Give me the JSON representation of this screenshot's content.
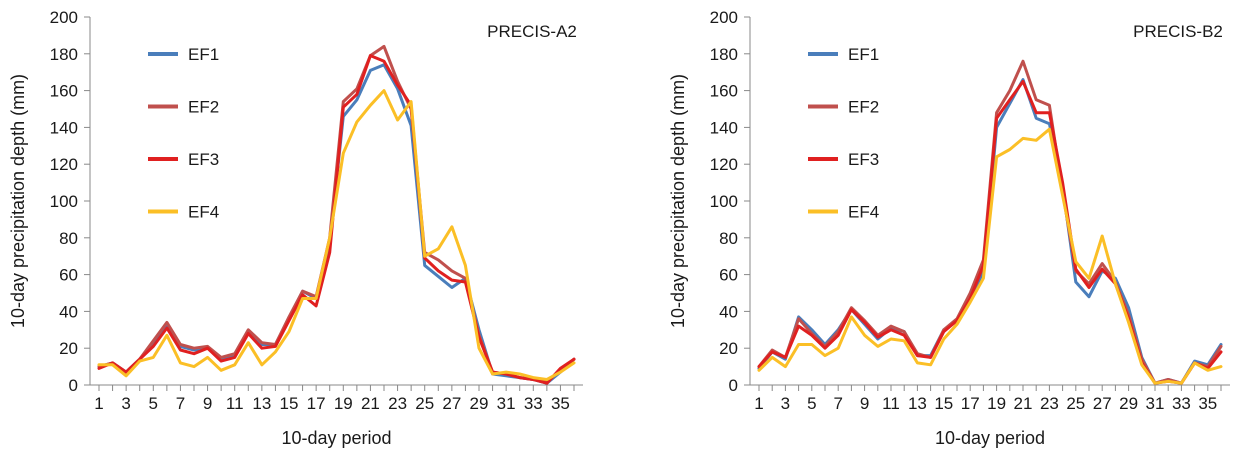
{
  "chart_data": [
    {
      "type": "line",
      "panel_label": "PRECIS-A2",
      "xlabel": "10-day period",
      "ylabel": "10-day precipitation depth (mm)",
      "ylim": [
        0,
        200
      ],
      "y_ticks": [
        0,
        20,
        40,
        60,
        80,
        100,
        120,
        140,
        160,
        180,
        200
      ],
      "x": [
        1,
        2,
        3,
        4,
        5,
        6,
        7,
        8,
        9,
        10,
        11,
        12,
        13,
        14,
        15,
        16,
        17,
        18,
        19,
        20,
        21,
        22,
        23,
        24,
        25,
        26,
        27,
        28,
        29,
        30,
        31,
        32,
        33,
        34,
        35,
        36
      ],
      "x_tick_labels": [
        "1",
        "3",
        "5",
        "7",
        "9",
        "11",
        "13",
        "15",
        "17",
        "19",
        "21",
        "23",
        "25",
        "27",
        "29",
        "31",
        "33",
        "35"
      ],
      "legend_position": "top-left",
      "grid": false,
      "series": [
        {
          "name": "EF1",
          "color": "#4a7ebb",
          "values": [
            10,
            12,
            7,
            14,
            22,
            33,
            21,
            19,
            20,
            14,
            16,
            29,
            22,
            22,
            36,
            51,
            47,
            77,
            146,
            155,
            171,
            174,
            161,
            141,
            65,
            59,
            53,
            58,
            30,
            6,
            5,
            4,
            3,
            1,
            7,
            14
          ]
        },
        {
          "name": "EF2",
          "color": "#c0504d",
          "values": [
            10,
            12,
            7,
            14,
            24,
            34,
            22,
            20,
            21,
            15,
            17,
            30,
            23,
            22,
            37,
            51,
            48,
            80,
            154,
            161,
            179,
            184,
            165,
            150,
            72,
            68,
            62,
            58,
            27,
            7,
            6,
            4,
            3,
            2,
            8,
            14
          ]
        },
        {
          "name": "EF3",
          "color": "#e02020",
          "values": [
            9,
            12,
            7,
            14,
            21,
            31,
            19,
            17,
            20,
            13,
            15,
            28,
            20,
            21,
            35,
            49,
            43,
            72,
            151,
            158,
            179,
            176,
            163,
            152,
            69,
            62,
            57,
            56,
            26,
            7,
            6,
            4,
            3,
            1,
            9,
            14
          ]
        },
        {
          "name": "EF4",
          "color": "#fbbf26",
          "values": [
            11,
            11,
            5,
            13,
            15,
            27,
            12,
            10,
            15,
            8,
            11,
            23,
            11,
            18,
            29,
            47,
            47,
            80,
            126,
            143,
            152,
            160,
            144,
            154,
            70,
            74,
            86,
            65,
            20,
            6,
            7,
            6,
            4,
            3,
            7,
            12
          ]
        }
      ]
    },
    {
      "type": "line",
      "panel_label": "PRECIS-B2",
      "xlabel": "10-day period",
      "ylabel": "10-day precipitation depth (mm)",
      "ylim": [
        0,
        200
      ],
      "y_ticks": [
        0,
        20,
        40,
        60,
        80,
        100,
        120,
        140,
        160,
        180,
        200
      ],
      "x": [
        1,
        2,
        3,
        4,
        5,
        6,
        7,
        8,
        9,
        10,
        11,
        12,
        13,
        14,
        15,
        16,
        17,
        18,
        19,
        20,
        21,
        22,
        23,
        24,
        25,
        26,
        27,
        28,
        29,
        30,
        31,
        32,
        33,
        34,
        35,
        36
      ],
      "x_tick_labels": [
        "1",
        "3",
        "5",
        "7",
        "9",
        "11",
        "13",
        "15",
        "17",
        "19",
        "21",
        "23",
        "25",
        "27",
        "29",
        "31",
        "33",
        "35"
      ],
      "legend_position": "top-left",
      "grid": false,
      "series": [
        {
          "name": "EF1",
          "color": "#4a7ebb",
          "values": [
            9,
            18,
            14,
            37,
            30,
            22,
            30,
            41,
            33,
            25,
            31,
            29,
            16,
            16,
            30,
            35,
            46,
            62,
            140,
            153,
            166,
            145,
            142,
            108,
            56,
            48,
            62,
            58,
            42,
            15,
            1,
            3,
            1,
            13,
            11,
            22
          ]
        },
        {
          "name": "EF2",
          "color": "#c0504d",
          "values": [
            10,
            19,
            15,
            36,
            28,
            21,
            29,
            42,
            35,
            27,
            32,
            29,
            17,
            15,
            30,
            36,
            50,
            68,
            148,
            160,
            176,
            155,
            152,
            105,
            62,
            55,
            66,
            56,
            38,
            14,
            1,
            3,
            1,
            12,
            10,
            21
          ]
        },
        {
          "name": "EF3",
          "color": "#e02020",
          "values": [
            10,
            18,
            15,
            32,
            27,
            20,
            27,
            41,
            34,
            26,
            30,
            27,
            16,
            15,
            29,
            35,
            47,
            65,
            145,
            155,
            165,
            148,
            148,
            110,
            63,
            53,
            63,
            55,
            36,
            12,
            1,
            2,
            1,
            12,
            9,
            18
          ]
        },
        {
          "name": "EF4",
          "color": "#fbbf26",
          "values": [
            8,
            15,
            10,
            22,
            22,
            16,
            20,
            37,
            27,
            21,
            25,
            24,
            12,
            11,
            25,
            33,
            45,
            58,
            124,
            128,
            134,
            133,
            139,
            103,
            67,
            58,
            81,
            55,
            34,
            11,
            1,
            2,
            1,
            12,
            8,
            10
          ]
        }
      ]
    }
  ]
}
